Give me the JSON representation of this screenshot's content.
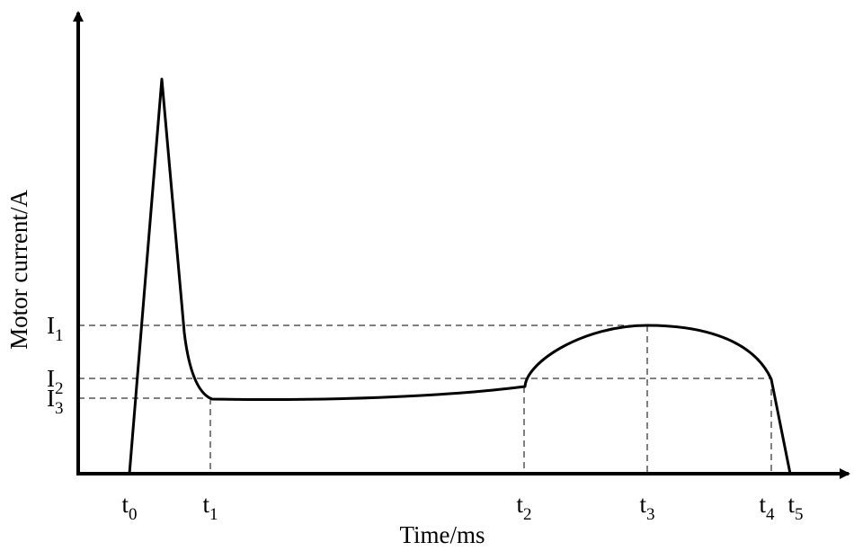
{
  "chart_data": {
    "type": "line",
    "xlabel": "Time/ms",
    "ylabel": "Motor current/A",
    "x_ticks": [
      {
        "base": "t",
        "sub": "0"
      },
      {
        "base": "t",
        "sub": "1"
      },
      {
        "base": "t",
        "sub": "2"
      },
      {
        "base": "t",
        "sub": "3"
      },
      {
        "base": "t",
        "sub": "4"
      },
      {
        "base": "t",
        "sub": "5"
      }
    ],
    "y_ticks": [
      {
        "base": "I",
        "sub": "1"
      },
      {
        "base": "I",
        "sub": "2"
      },
      {
        "base": "I",
        "sub": "3"
      }
    ],
    "guides": {
      "vertical": [
        "t1",
        "t2",
        "t3",
        "t4"
      ],
      "horizontal": [
        "I1",
        "I2",
        "I3"
      ],
      "style": "dashed"
    },
    "series_color": "#000000",
    "grid": false,
    "legend": "none"
  }
}
